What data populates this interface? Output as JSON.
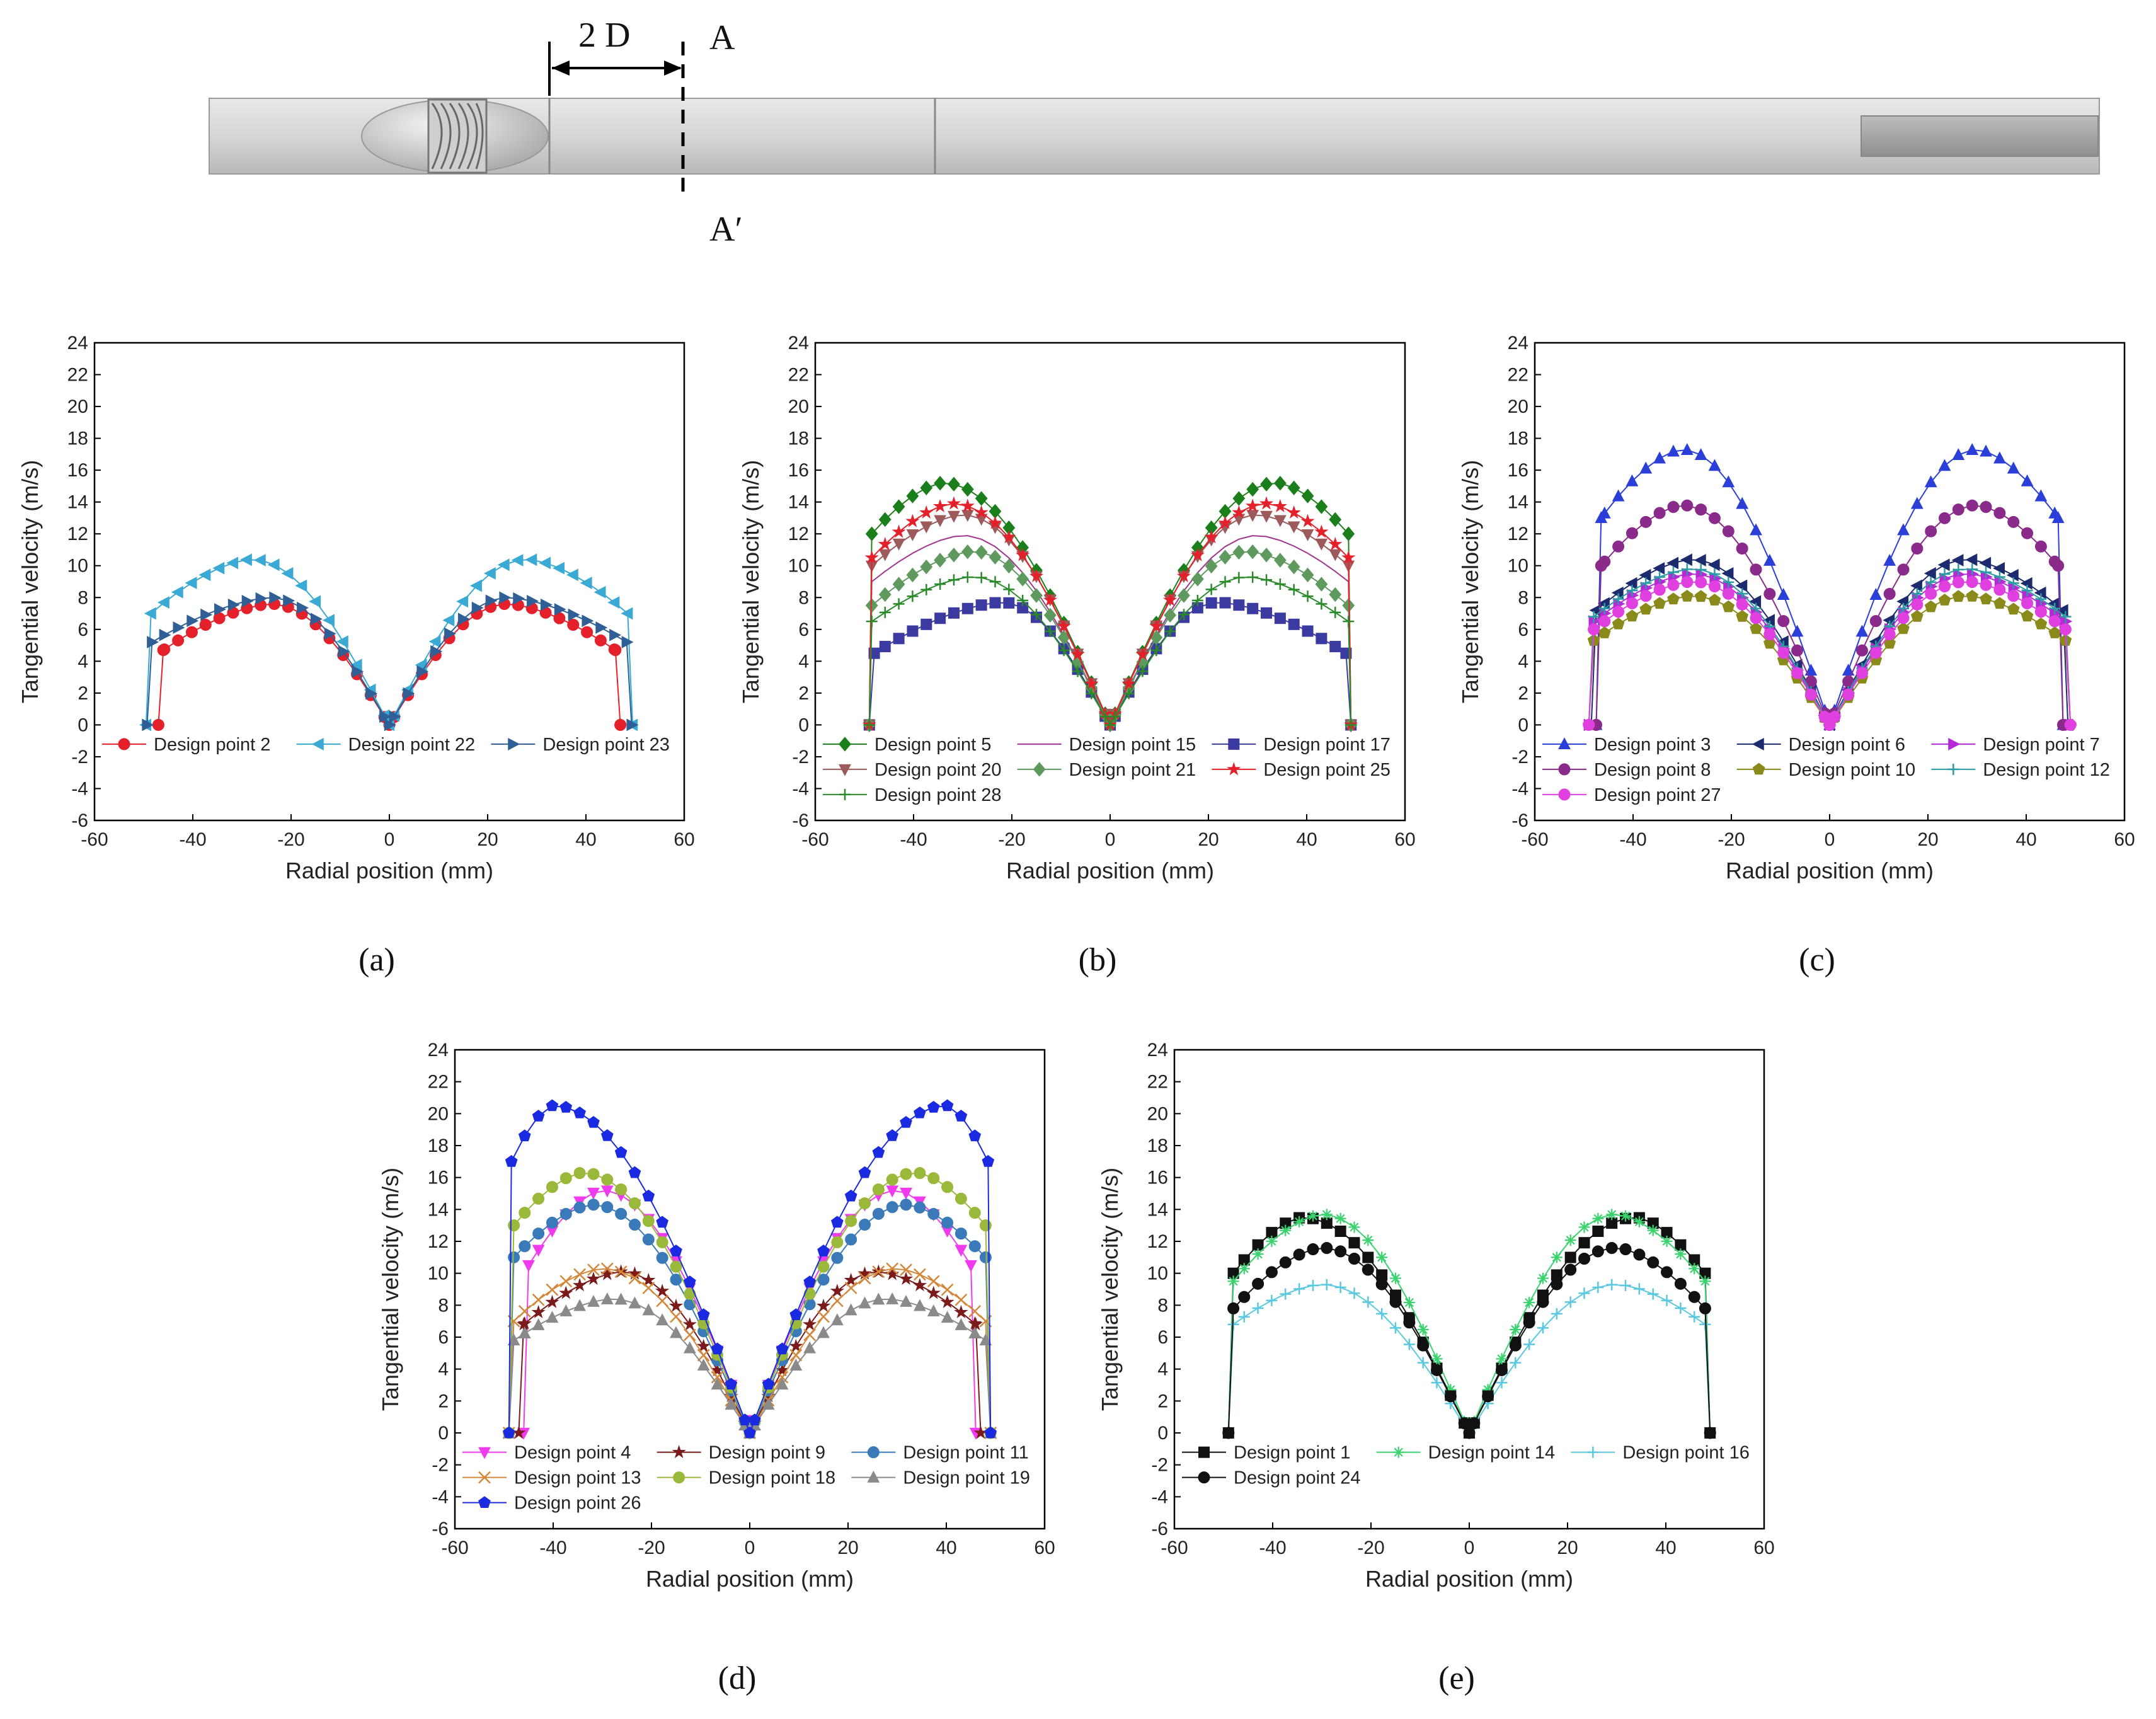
{
  "header": {
    "dimension_label": "2 D",
    "section_top_label": "A",
    "section_bottom_label": "A′"
  },
  "chart_data": [
    {
      "type": "line",
      "panel": "a",
      "caption": "(a)",
      "xlabel": "Radial position (mm)",
      "ylabel": "Tangential velocity (m/s)",
      "xlim": [
        -60,
        60
      ],
      "ylim": [
        -6,
        24
      ],
      "xticks": [
        -60,
        -40,
        -20,
        0,
        20,
        40,
        60
      ],
      "yticks": [
        -6,
        -4,
        -2,
        0,
        2,
        4,
        6,
        8,
        10,
        12,
        14,
        16,
        18,
        20,
        22,
        24
      ],
      "legend_columns": 3,
      "series": [
        {
          "name": "Design point 2",
          "color": "#e4212a",
          "marker": "circle",
          "peak": 7.6,
          "peak_r": 24,
          "edge_val": 4.7,
          "edge_r": 46,
          "outer_r": 47
        },
        {
          "name": "Design point 22",
          "color": "#3aa9d3",
          "marker": "tri-left",
          "peak": 10.4,
          "peak_r": 28,
          "edge_val": 7.0,
          "edge_r": 48.5,
          "outer_r": 49.5
        },
        {
          "name": "Design point 23",
          "color": "#2f5f95",
          "marker": "tri-right",
          "peak": 8.0,
          "peak_r": 24,
          "edge_val": 5.2,
          "edge_r": 48.3,
          "outer_r": 49.3
        }
      ]
    },
    {
      "type": "line",
      "panel": "b",
      "caption": "(b)",
      "xlabel": "Radial position (mm)",
      "ylabel": "Tangential velocity (m/s)",
      "xlim": [
        -60,
        60
      ],
      "ylim": [
        -6,
        24
      ],
      "xticks": [
        -60,
        -40,
        -20,
        0,
        20,
        40,
        60
      ],
      "yticks": [
        -6,
        -4,
        -2,
        0,
        2,
        4,
        6,
        8,
        10,
        12,
        14,
        16,
        18,
        20,
        22,
        24
      ],
      "legend_columns": 3,
      "series": [
        {
          "name": "Design point 5",
          "color": "#1a7f1a",
          "marker": "diamond",
          "peak": 15.2,
          "peak_r": 34,
          "edge_val": 12.0,
          "edge_r": 48.5,
          "outer_r": 49
        },
        {
          "name": "Design point 15",
          "color": "#a0348e",
          "marker": "none",
          "peak": 11.9,
          "peak_r": 30,
          "edge_val": 9.0,
          "edge_r": 48.5,
          "outer_r": 49
        },
        {
          "name": "Design point 17",
          "color": "#3a3aa0",
          "marker": "square",
          "peak": 7.7,
          "peak_r": 22,
          "edge_val": 4.5,
          "edge_r": 48,
          "outer_r": 49
        },
        {
          "name": "Design point 20",
          "color": "#9c5a5a",
          "marker": "tri-down",
          "peak": 13.2,
          "peak_r": 30,
          "edge_val": 10.0,
          "edge_r": 48.5,
          "outer_r": 49
        },
        {
          "name": "Design point 21",
          "color": "#5e9a5e",
          "marker": "diamond",
          "peak": 10.9,
          "peak_r": 28,
          "edge_val": 7.5,
          "edge_r": 48.5,
          "outer_r": 49
        },
        {
          "name": "Design point 25",
          "color": "#e4212a",
          "marker": "star",
          "peak": 13.9,
          "peak_r": 32,
          "edge_val": 10.5,
          "edge_r": 48.5,
          "outer_r": 49
        },
        {
          "name": "Design point 28",
          "color": "#2a8a2a",
          "marker": "plus",
          "peak": 9.3,
          "peak_r": 28,
          "edge_val": 6.5,
          "edge_r": 48.5,
          "outer_r": 49
        }
      ]
    },
    {
      "type": "line",
      "panel": "c",
      "caption": "(c)",
      "xlabel": "Radial position (mm)",
      "ylabel": "Tangential velocity (m/s)",
      "xlim": [
        -60,
        60
      ],
      "ylim": [
        -6,
        24
      ],
      "xticks": [
        -60,
        -40,
        -20,
        0,
        20,
        40,
        60
      ],
      "yticks": [
        -6,
        -4,
        -2,
        0,
        2,
        4,
        6,
        8,
        10,
        12,
        14,
        16,
        18,
        20,
        22,
        24
      ],
      "legend_columns": 3,
      "series": [
        {
          "name": "Design point 3",
          "color": "#2a3fd8",
          "marker": "tri-up",
          "peak": 17.3,
          "peak_r": 30,
          "edge_val": 13.0,
          "edge_r": 46.5,
          "outer_r": 47.5
        },
        {
          "name": "Design point 6",
          "color": "#1c2a6e",
          "marker": "tri-left",
          "peak": 10.4,
          "peak_r": 28,
          "edge_val": 7.2,
          "edge_r": 47.5,
          "outer_r": 48.5
        },
        {
          "name": "Design point 7",
          "color": "#b62ad6",
          "marker": "tri-right",
          "peak": 9.5,
          "peak_r": 28,
          "edge_val": 6.5,
          "edge_r": 48,
          "outer_r": 49
        },
        {
          "name": "Design point 8",
          "color": "#8a2a8a",
          "marker": "circle",
          "peak": 13.8,
          "peak_r": 30,
          "edge_val": 10.0,
          "edge_r": 46.5,
          "outer_r": 47.5
        },
        {
          "name": "Design point 10",
          "color": "#8a8a1a",
          "marker": "pentagon",
          "peak": 8.1,
          "peak_r": 28,
          "edge_val": 5.3,
          "edge_r": 48,
          "outer_r": 49
        },
        {
          "name": "Design point 12",
          "color": "#2a9aa4",
          "marker": "plus",
          "peak": 9.8,
          "peak_r": 28,
          "edge_val": 6.8,
          "edge_r": 48,
          "outer_r": 49
        },
        {
          "name": "Design point 27",
          "color": "#e040e0",
          "marker": "circle",
          "peak": 9.0,
          "peak_r": 28,
          "edge_val": 6.0,
          "edge_r": 48,
          "outer_r": 49
        }
      ]
    },
    {
      "type": "line",
      "panel": "d",
      "caption": "(d)",
      "xlabel": "Radial position (mm)",
      "ylabel": "Tangential velocity (m/s)",
      "xlim": [
        -60,
        60
      ],
      "ylim": [
        -6,
        24
      ],
      "xticks": [
        -60,
        -40,
        -20,
        0,
        20,
        40,
        60
      ],
      "yticks": [
        -6,
        -4,
        -2,
        0,
        2,
        4,
        6,
        8,
        10,
        12,
        14,
        16,
        18,
        20,
        22,
        24
      ],
      "legend_columns": 3,
      "series": [
        {
          "name": "Design point 4",
          "color": "#f03aee",
          "marker": "tri-down",
          "peak": 15.2,
          "peak_r": 30,
          "edge_val": 10.5,
          "edge_r": 45,
          "outer_r": 46
        },
        {
          "name": "Design point 9",
          "color": "#7a1a1a",
          "marker": "star",
          "peak": 10.1,
          "peak_r": 26,
          "edge_val": 6.8,
          "edge_r": 46,
          "outer_r": 47
        },
        {
          "name": "Design point 11",
          "color": "#3a7ab8",
          "marker": "circle",
          "peak": 14.3,
          "peak_r": 32,
          "edge_val": 11.0,
          "edge_r": 48,
          "outer_r": 49
        },
        {
          "name": "Design point 13",
          "color": "#d2873a",
          "marker": "cross",
          "peak": 10.3,
          "peak_r": 30,
          "edge_val": 7.0,
          "edge_r": 48,
          "outer_r": 49
        },
        {
          "name": "Design point 18",
          "color": "#9ab83a",
          "marker": "circle",
          "peak": 16.3,
          "peak_r": 34,
          "edge_val": 13.0,
          "edge_r": 48,
          "outer_r": 49
        },
        {
          "name": "Design point 19",
          "color": "#8a8a8a",
          "marker": "tri-up",
          "peak": 8.4,
          "peak_r": 28,
          "edge_val": 5.8,
          "edge_r": 48,
          "outer_r": 49
        },
        {
          "name": "Design point 26",
          "color": "#1a2ae0",
          "marker": "pentagon",
          "peak": 20.5,
          "peak_r": 40,
          "edge_val": 17.0,
          "edge_r": 48.5,
          "outer_r": 49
        }
      ]
    },
    {
      "type": "line",
      "panel": "e",
      "caption": "(e)",
      "xlabel": "Radial position (mm)",
      "ylabel": "Tangential velocity (m/s)",
      "xlim": [
        -60,
        60
      ],
      "ylim": [
        -6,
        24
      ],
      "xticks": [
        -60,
        -40,
        -20,
        0,
        20,
        40,
        60
      ],
      "yticks": [
        -6,
        -4,
        -2,
        0,
        2,
        4,
        6,
        8,
        10,
        12,
        14,
        16,
        18,
        20,
        22,
        24
      ],
      "legend_columns": 3,
      "series": [
        {
          "name": "Design point 1",
          "color": "#111111",
          "marker": "square",
          "peak": 13.5,
          "peak_r": 34,
          "edge_val": 10.0,
          "edge_r": 48,
          "outer_r": 49
        },
        {
          "name": "Design point 14",
          "color": "#3ad26e",
          "marker": "asterisk",
          "peak": 13.7,
          "peak_r": 30,
          "edge_val": 9.5,
          "edge_r": 48,
          "outer_r": 49
        },
        {
          "name": "Design point 16",
          "color": "#5ac8de",
          "marker": "plus",
          "peak": 9.3,
          "peak_r": 30,
          "edge_val": 6.8,
          "edge_r": 48,
          "outer_r": 49
        },
        {
          "name": "Design point 24",
          "color": "#111111",
          "marker": "circle",
          "peak": 11.6,
          "peak_r": 30,
          "edge_val": 7.8,
          "edge_r": 48,
          "outer_r": 49
        }
      ]
    }
  ]
}
